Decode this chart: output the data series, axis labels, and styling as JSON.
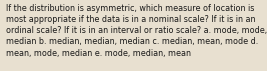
{
  "lines": [
    "If the distribution is asymmetric, which measure of location is",
    "most appropriate if the data is in a nominal scale? If it is in an",
    "ordinal scale? If it is in an interval or ratio scale? a. mode, mode,",
    "median b. median, median, median c. median, mean, mode d.",
    "mean, mode, median e. mode, median, mean"
  ],
  "bg_color": "#e8e0d0",
  "text_color": "#1a1a1a",
  "font_size": 5.75,
  "fig_width": 2.62,
  "fig_height": 0.69,
  "dpi": 100
}
